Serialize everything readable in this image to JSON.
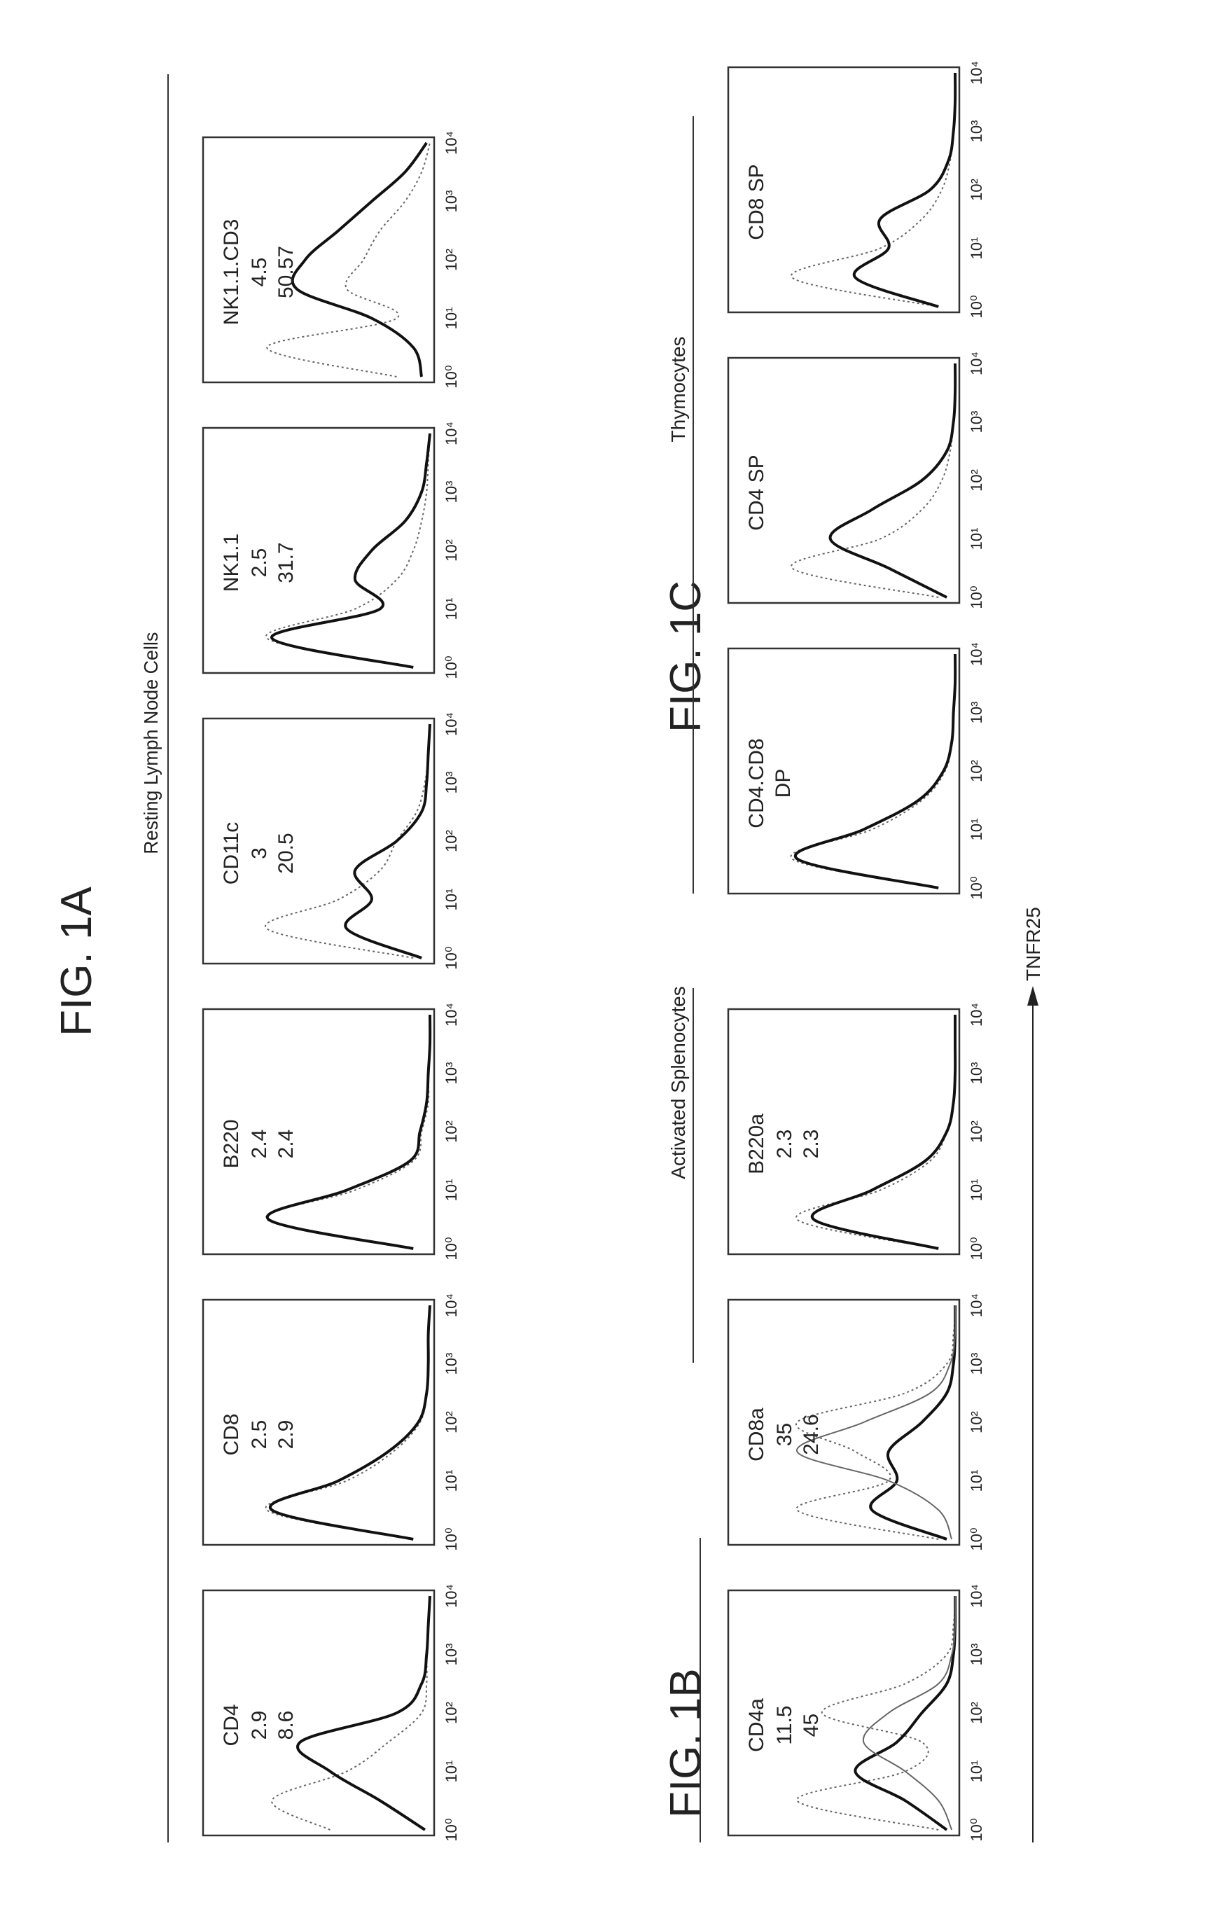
{
  "figure_labels": {
    "fig_1a": "FIG. 1A",
    "fig_1b": "FIG. 1B",
    "fig_1c": "FIG. 1C"
  },
  "group_titles": {
    "resting": "Resting Lymph Node Cells",
    "activated": "Activated Splenocytes",
    "thymocytes": "Thymocytes"
  },
  "x_axis_title": "TNFR25",
  "x_ticks": [
    "10⁰",
    "10¹",
    "10²",
    "10³",
    "10⁴"
  ],
  "colors": {
    "ink": "#222222",
    "solid": "#111111",
    "dotted": "#666666"
  },
  "chart_data": [
    {
      "type": "line",
      "figure": "FIG. 1A",
      "group": "Resting Lymph Node Cells",
      "label": "CD4",
      "annotations": [
        "2.9",
        "8.6"
      ],
      "xscale": "log",
      "xlim": [
        1,
        10000
      ],
      "x": [
        0,
        0.5,
        1,
        1.5,
        2,
        2.5,
        3,
        3.5,
        4
      ],
      "series": [
        {
          "style": "dotted",
          "values": [
            0.6,
            0.95,
            0.5,
            0.25,
            0.05,
            0.02,
            0.02,
            0.01,
            0
          ]
        },
        {
          "style": "solid",
          "values": [
            0.03,
            0.3,
            0.6,
            0.78,
            0.2,
            0.05,
            0.02,
            0.01,
            0
          ]
        }
      ]
    },
    {
      "type": "line",
      "figure": "FIG. 1A",
      "group": "Resting Lymph Node Cells",
      "label": "CD8",
      "annotations": [
        "2.5",
        "2.9"
      ],
      "xscale": "log",
      "xlim": [
        1,
        10000
      ],
      "x": [
        0,
        0.5,
        1,
        1.5,
        2,
        2.5,
        3,
        3.5,
        4
      ],
      "series": [
        {
          "style": "dotted",
          "values": [
            0.1,
            0.98,
            0.5,
            0.22,
            0.06,
            0.02,
            0.01,
            0.01,
            0
          ]
        },
        {
          "style": "solid",
          "values": [
            0.1,
            0.95,
            0.55,
            0.25,
            0.07,
            0.02,
            0.01,
            0.01,
            0
          ]
        }
      ]
    },
    {
      "type": "line",
      "figure": "FIG. 1A",
      "group": "Resting Lymph Node Cells",
      "label": "B220",
      "annotations": [
        "2.4",
        "2.4"
      ],
      "xscale": "log",
      "xlim": [
        1,
        10000
      ],
      "x": [
        0,
        0.5,
        1,
        1.5,
        2,
        2.5,
        3,
        3.5,
        4
      ],
      "series": [
        {
          "style": "dotted",
          "values": [
            0.1,
            0.98,
            0.45,
            0.1,
            0.05,
            0.01,
            0.01,
            0,
            0
          ]
        },
        {
          "style": "solid",
          "values": [
            0.1,
            0.97,
            0.5,
            0.12,
            0.06,
            0.02,
            0.01,
            0,
            0
          ]
        }
      ]
    },
    {
      "type": "line",
      "figure": "FIG. 1A",
      "group": "Resting Lymph Node Cells",
      "label": "CD11c",
      "annotations": [
        "3",
        "20.5"
      ],
      "xscale": "log",
      "xlim": [
        1,
        10000
      ],
      "x": [
        0,
        0.5,
        1,
        1.5,
        2,
        2.5,
        3,
        3.5,
        4
      ],
      "series": [
        {
          "style": "dotted",
          "values": [
            0.1,
            0.98,
            0.55,
            0.3,
            0.2,
            0.08,
            0.03,
            0.01,
            0
          ]
        },
        {
          "style": "solid",
          "values": [
            0.05,
            0.5,
            0.35,
            0.45,
            0.2,
            0.05,
            0.02,
            0.01,
            0
          ]
        }
      ]
    },
    {
      "type": "line",
      "figure": "FIG. 1A",
      "group": "Resting Lymph Node Cells",
      "label": "NK1.1",
      "annotations": [
        "2.5",
        "31.7"
      ],
      "xscale": "log",
      "xlim": [
        1,
        10000
      ],
      "x": [
        0,
        0.5,
        1,
        1.5,
        2,
        2.5,
        3,
        3.5,
        4
      ],
      "series": [
        {
          "style": "dotted",
          "values": [
            0.1,
            0.98,
            0.45,
            0.2,
            0.1,
            0.05,
            0.02,
            0.01,
            0
          ]
        },
        {
          "style": "solid",
          "values": [
            0.1,
            0.95,
            0.3,
            0.45,
            0.35,
            0.15,
            0.05,
            0.02,
            0
          ]
        }
      ]
    },
    {
      "type": "line",
      "figure": "FIG. 1A",
      "group": "Resting Lymph Node Cells",
      "label": "NK1.1.CD3",
      "annotations": [
        "4.5",
        "50.57"
      ],
      "xscale": "log",
      "xlim": [
        1,
        10000
      ],
      "x": [
        0,
        0.5,
        1,
        1.5,
        2,
        2.5,
        3,
        3.5,
        4
      ],
      "series": [
        {
          "style": "dotted",
          "values": [
            0.2,
            0.98,
            0.2,
            0.5,
            0.4,
            0.3,
            0.15,
            0.05,
            0
          ]
        },
        {
          "style": "solid",
          "values": [
            0.05,
            0.1,
            0.35,
            0.8,
            0.75,
            0.55,
            0.35,
            0.15,
            0.02
          ]
        }
      ]
    },
    {
      "type": "line",
      "figure": "FIG. 1B",
      "group": "Activated Splenocytes",
      "label": "CD4a",
      "annotations": [
        "11.5",
        "45"
      ],
      "xscale": "log",
      "xlim": [
        1,
        10000
      ],
      "x": [
        0,
        0.5,
        1,
        1.5,
        2,
        2.5,
        3,
        3.5,
        4
      ],
      "series": [
        {
          "style": "dotted",
          "values": [
            0.1,
            0.95,
            0.3,
            0.2,
            0.8,
            0.3,
            0.05,
            0.01,
            0
          ]
        },
        {
          "style": "solid",
          "values": [
            0.05,
            0.3,
            0.6,
            0.35,
            0.2,
            0.05,
            0.01,
            0,
            0
          ]
        },
        {
          "style": "thin",
          "values": [
            0.02,
            0.1,
            0.3,
            0.55,
            0.4,
            0.1,
            0.02,
            0,
            0
          ]
        }
      ]
    },
    {
      "type": "line",
      "figure": "FIG. 1B",
      "group": "Activated Splenocytes",
      "label": "CD8a",
      "annotations": [
        "35",
        "24.6"
      ],
      "xscale": "log",
      "xlim": [
        1,
        10000
      ],
      "x": [
        0,
        0.5,
        1,
        1.5,
        2,
        2.5,
        3,
        3.5,
        4
      ],
      "series": [
        {
          "style": "dotted",
          "values": [
            0.1,
            0.95,
            0.4,
            0.6,
            0.95,
            0.3,
            0.05,
            0.01,
            0
          ]
        },
        {
          "style": "solid",
          "values": [
            0.05,
            0.5,
            0.35,
            0.4,
            0.2,
            0.05,
            0.01,
            0,
            0
          ]
        },
        {
          "style": "thin",
          "values": [
            0.02,
            0.1,
            0.4,
            0.95,
            0.55,
            0.15,
            0.03,
            0,
            0
          ]
        }
      ]
    },
    {
      "type": "line",
      "figure": "FIG. 1B",
      "group": "Activated Splenocytes",
      "label": "B220a",
      "annotations": [
        "2.3",
        "2.3"
      ],
      "xscale": "log",
      "xlim": [
        1,
        10000
      ],
      "x": [
        0,
        0.5,
        1,
        1.5,
        2,
        2.5,
        3,
        3.5,
        4
      ],
      "series": [
        {
          "style": "dotted",
          "values": [
            0.1,
            0.95,
            0.45,
            0.15,
            0.05,
            0.01,
            0,
            0,
            0
          ]
        },
        {
          "style": "solid",
          "values": [
            0.1,
            0.85,
            0.5,
            0.18,
            0.05,
            0.01,
            0,
            0,
            0
          ]
        }
      ]
    },
    {
      "type": "line",
      "figure": "FIG. 1C",
      "group": "Thymocytes",
      "label": "CD4.CD8",
      "sublabel": "DP",
      "annotations": [],
      "xscale": "log",
      "xlim": [
        1,
        10000
      ],
      "x": [
        0,
        0.5,
        1,
        1.5,
        2,
        2.5,
        3,
        3.5,
        4
      ],
      "series": [
        {
          "style": "dotted",
          "values": [
            0.1,
            0.98,
            0.5,
            0.2,
            0.06,
            0.02,
            0.01,
            0,
            0
          ]
        },
        {
          "style": "solid",
          "values": [
            0.1,
            0.95,
            0.55,
            0.22,
            0.07,
            0.02,
            0.01,
            0,
            0
          ]
        }
      ]
    },
    {
      "type": "line",
      "figure": "FIG. 1C",
      "group": "Thymocytes",
      "label": "CD4 SP",
      "annotations": [],
      "xscale": "log",
      "xlim": [
        1,
        10000
      ],
      "x": [
        0,
        0.5,
        1,
        1.5,
        2,
        2.5,
        3,
        3.5,
        4
      ],
      "series": [
        {
          "style": "dotted",
          "values": [
            0.1,
            0.98,
            0.45,
            0.2,
            0.08,
            0.03,
            0.01,
            0,
            0
          ]
        },
        {
          "style": "solid",
          "values": [
            0.05,
            0.4,
            0.75,
            0.5,
            0.2,
            0.05,
            0.01,
            0,
            0
          ]
        }
      ]
    },
    {
      "type": "line",
      "figure": "FIG. 1C",
      "group": "Thymocytes",
      "label": "CD8 SP",
      "annotations": [],
      "xscale": "log",
      "xlim": [
        1,
        10000
      ],
      "x": [
        0,
        0.5,
        1,
        1.5,
        2,
        2.5,
        3,
        3.5,
        4
      ],
      "series": [
        {
          "style": "dotted",
          "values": [
            0.1,
            0.98,
            0.45,
            0.2,
            0.08,
            0.03,
            0.01,
            0,
            0
          ]
        },
        {
          "style": "solid",
          "values": [
            0.1,
            0.6,
            0.4,
            0.45,
            0.15,
            0.04,
            0.01,
            0,
            0
          ]
        }
      ]
    }
  ]
}
